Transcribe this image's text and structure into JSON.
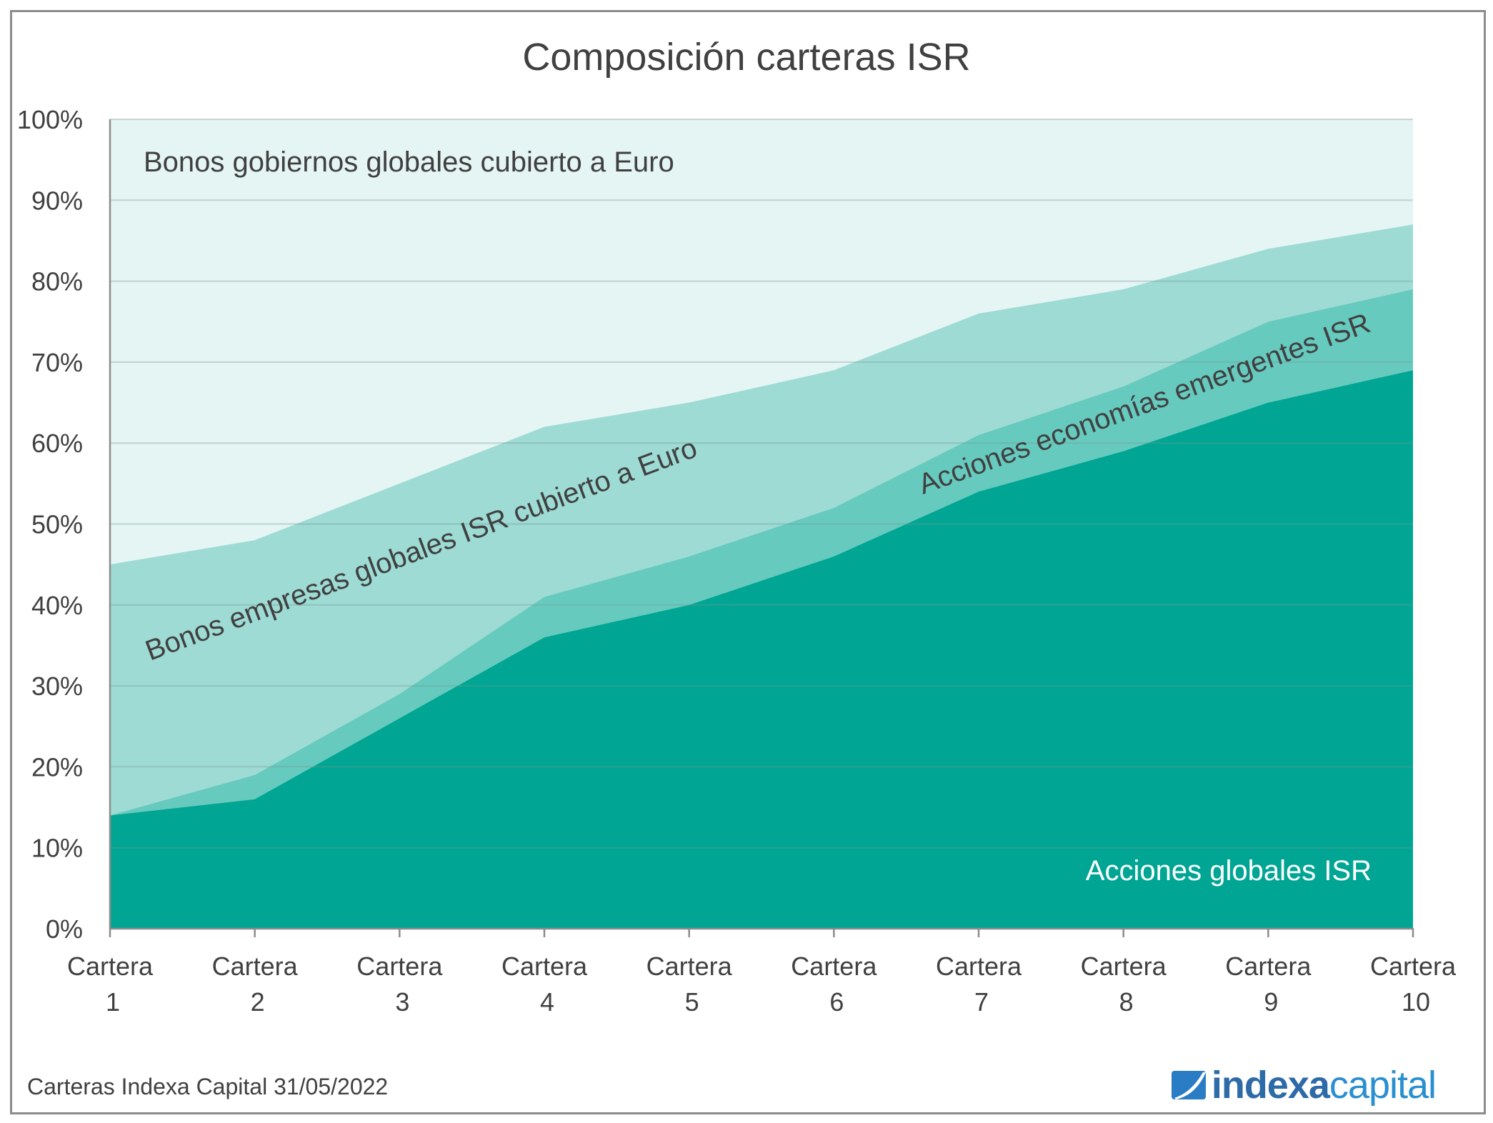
{
  "chart_data": {
    "type": "area",
    "stacked": true,
    "title": "Composición carteras ISR",
    "xlabel": "",
    "ylabel": "",
    "ylim": [
      0,
      100
    ],
    "y_tick_labels": [
      "0%",
      "10%",
      "20%",
      "30%",
      "40%",
      "50%",
      "60%",
      "70%",
      "80%",
      "90%",
      "100%"
    ],
    "categories": [
      "Cartera 1",
      "Cartera 2",
      "Cartera 3",
      "Cartera 4",
      "Cartera 5",
      "Cartera 6",
      "Cartera 7",
      "Cartera 8",
      "Cartera 9",
      "Cartera 10"
    ],
    "series": [
      {
        "name": "Acciones globales ISR",
        "color": "#00a693",
        "values": [
          14,
          16,
          26,
          36,
          40,
          46,
          54,
          59,
          65,
          69
        ]
      },
      {
        "name": "Acciones economías emergentes ISR",
        "color": "#66cabe",
        "values": [
          0,
          3,
          3,
          5,
          6,
          6,
          7,
          8,
          10,
          10
        ]
      },
      {
        "name": "Bonos empresas globales ISR cubierto a Euro",
        "color": "#9ddbd4",
        "values": [
          31,
          29,
          26,
          21,
          19,
          17,
          15,
          12,
          9,
          8
        ]
      },
      {
        "name": "Bonos gobiernos globales cubierto a Euro",
        "color": "#e4f5f3",
        "values": [
          55,
          52,
          45,
          38,
          35,
          31,
          24,
          21,
          16,
          13
        ]
      }
    ],
    "grid": true,
    "legend": "inline labels on areas"
  },
  "labels": {
    "title": "Composición carteras ISR",
    "gov_bonds": "Bonos gobiernos globales cubierto a Euro",
    "corp_bonds": "Bonos empresas globales ISR cubierto a Euro",
    "em_equity": "Acciones economías emergentes ISR",
    "global_equity": "Acciones globales ISR",
    "x_line1": [
      "Cartera",
      "Cartera",
      "Cartera",
      "Cartera",
      "Cartera",
      "Cartera",
      "Cartera",
      "Cartera",
      "Cartera",
      "Cartera"
    ],
    "x_line2": [
      "1",
      "2",
      "3",
      "4",
      "5",
      "6",
      "7",
      "8",
      "9",
      "10"
    ],
    "y_ticks": [
      "0%",
      "10%",
      "20%",
      "30%",
      "40%",
      "50%",
      "60%",
      "70%",
      "80%",
      "90%",
      "100%"
    ]
  },
  "footer": {
    "source": "Carteras Indexa Capital 31/05/2022",
    "logo_bold": "indexa",
    "logo_light": "capital"
  }
}
